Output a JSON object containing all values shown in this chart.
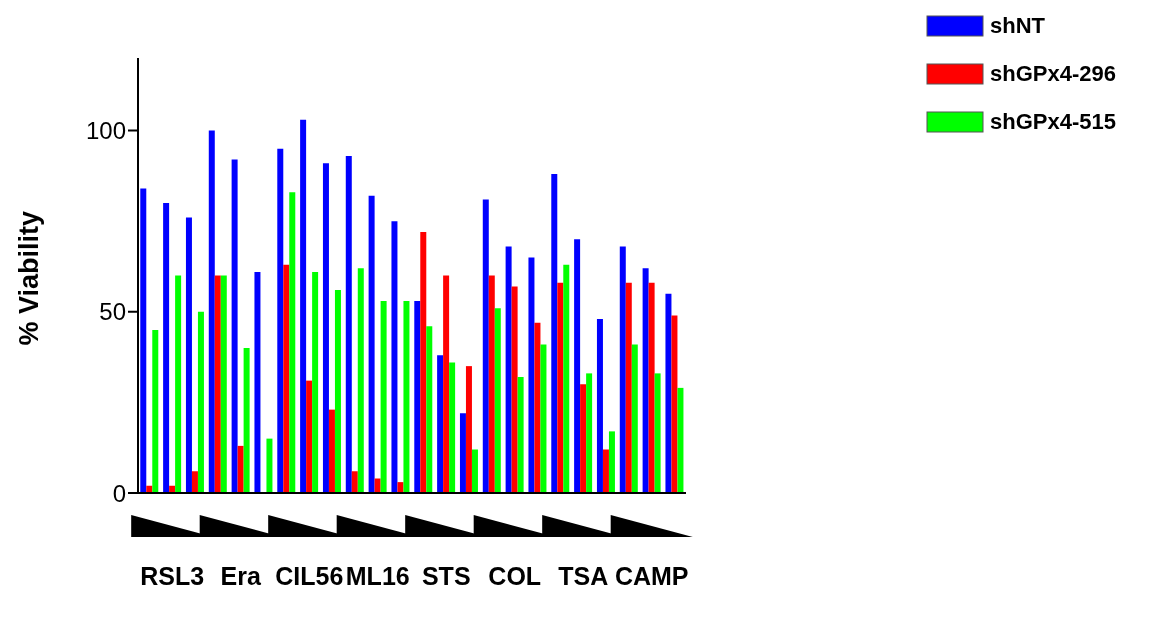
{
  "chart_data": {
    "type": "bar",
    "ylabel": "% Viability",
    "categories": [
      null,
      "RSL3",
      null,
      null,
      "Era",
      null,
      null,
      "CIL56",
      null,
      null,
      "ML16",
      null,
      null,
      "STS",
      null,
      null,
      "COL",
      null,
      null,
      "TSA",
      null,
      null,
      "CAMP",
      null
    ],
    "series": [
      {
        "name": "shNT",
        "color": "#0000ff",
        "values": [
          84,
          80,
          76,
          100,
          92,
          61,
          95,
          103,
          91,
          93,
          82,
          75,
          53,
          38,
          22,
          81,
          68,
          65,
          88,
          70,
          48,
          68,
          62,
          55
        ]
      },
      {
        "name": "shGPx4-296",
        "color": "#ff0000",
        "values": [
          2,
          2,
          6,
          60,
          13,
          null,
          63,
          31,
          23,
          6,
          4,
          3,
          72,
          60,
          35,
          60,
          57,
          47,
          58,
          30,
          12,
          58,
          58,
          49
        ]
      },
      {
        "name": "shGPx4-515",
        "color": "#00ff00",
        "values": [
          45,
          60,
          50,
          60,
          40,
          15,
          83,
          61,
          56,
          62,
          53,
          53,
          46,
          36,
          12,
          51,
          32,
          41,
          63,
          33,
          17,
          41,
          33,
          29
        ]
      }
    ],
    "ylim": [
      0,
      120
    ],
    "yticks": [
      0,
      50,
      100
    ],
    "legend": "top right"
  }
}
